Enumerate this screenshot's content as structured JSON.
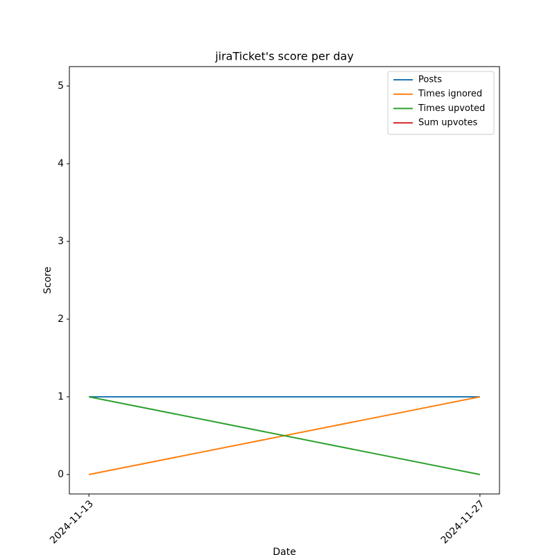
{
  "chart_data": {
    "type": "line",
    "title": "jiraTicket's score per day",
    "x_label": "Date",
    "y_label": "Score",
    "categories": [
      "2024-11-13",
      "2024-11-27"
    ],
    "series": [
      {
        "name": "Posts",
        "color": "#1f77b4",
        "values": [
          1,
          1
        ]
      },
      {
        "name": "Times ignored",
        "color": "#ff7f0e",
        "values": [
          0,
          1
        ]
      },
      {
        "name": "Times upvoted",
        "color": "#2ca02c",
        "values": [
          1,
          0
        ]
      },
      {
        "name": "Sum upvotes",
        "color": "#d62728",
        "values": [
          null,
          null
        ]
      }
    ],
    "ylim": [
      -0.25,
      5.25
    ],
    "yticks": [
      0,
      1,
      2,
      3,
      4,
      5
    ],
    "legend": "upper right"
  }
}
